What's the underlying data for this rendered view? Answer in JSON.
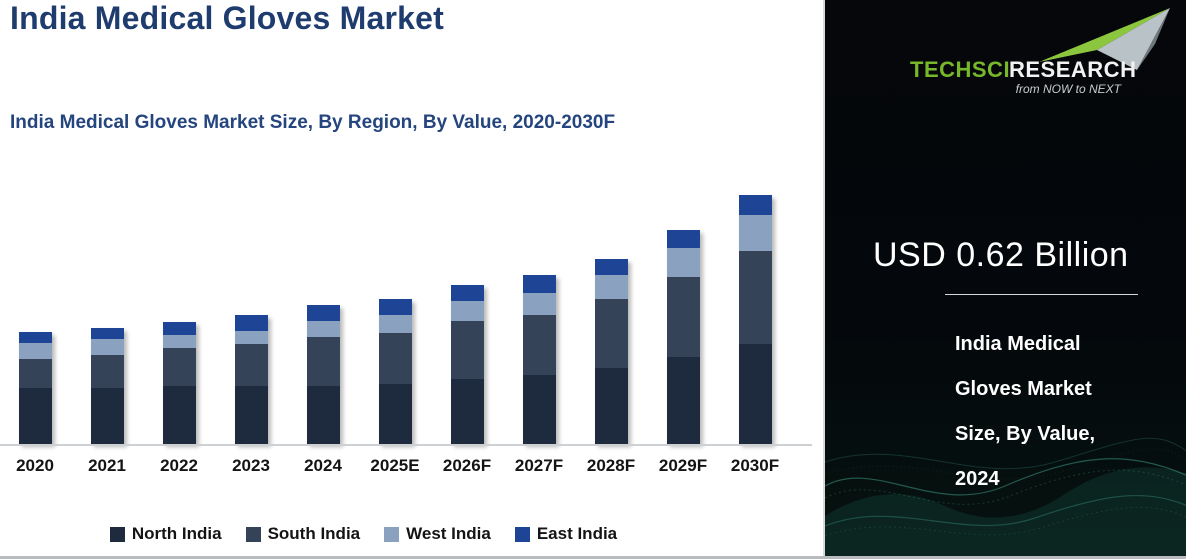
{
  "header": {
    "title": "India Medical Gloves Market",
    "subtitle": "India Medical Gloves Market Size, By Region, By Value, 2020-2030F"
  },
  "chart_data": {
    "type": "bar",
    "stacked": true,
    "title": "India Medical Gloves Market Size, By Region, By Value, 2020-2030F",
    "unit": "USD Billion",
    "categories": [
      "2020",
      "2021",
      "2022",
      "2023",
      "2024",
      "2025E",
      "2026F",
      "2027F",
      "2028F",
      "2029F",
      "2030F"
    ],
    "series": [
      {
        "name": "North India",
        "color": "#1e2b3e",
        "values": [
          0.25,
          0.25,
          0.26,
          0.26,
          0.26,
          0.27,
          0.29,
          0.31,
          0.34,
          0.39,
          0.45
        ]
      },
      {
        "name": "South India",
        "color": "#344357",
        "values": [
          0.13,
          0.15,
          0.17,
          0.19,
          0.22,
          0.23,
          0.26,
          0.27,
          0.31,
          0.36,
          0.42
        ]
      },
      {
        "name": "West India",
        "color": "#8aa2c0",
        "values": [
          0.07,
          0.07,
          0.06,
          0.06,
          0.07,
          0.08,
          0.09,
          0.1,
          0.11,
          0.13,
          0.16
        ]
      },
      {
        "name": "East India",
        "color": "#1e4495",
        "values": [
          0.05,
          0.05,
          0.06,
          0.07,
          0.07,
          0.07,
          0.07,
          0.08,
          0.07,
          0.08,
          0.09
        ]
      }
    ],
    "totals": [
      0.5,
      0.52,
      0.55,
      0.58,
      0.62,
      0.65,
      0.71,
      0.76,
      0.83,
      0.96,
      1.12
    ],
    "value_axis_visible": false,
    "grid": false,
    "legend_position": "bottom"
  },
  "sidebar": {
    "logo": {
      "brand_green": "TechSci",
      "brand_white": "Research",
      "tagline": "from NOW to NEXT"
    },
    "highlight_value": "USD 0.62 Billion",
    "highlight_label_lines": [
      "India Medical",
      "Gloves Market",
      "Size, By Value,",
      "2024"
    ]
  },
  "colors": {
    "title_navy": "#1f3c6e",
    "subtitle_navy": "#24457e",
    "axis_line": "#cdd0d2",
    "sidebar_background": "#05070a",
    "divider": "#d8d8d8",
    "logo_green": "#76b82a",
    "wave_teal": "#2e8f7f"
  }
}
